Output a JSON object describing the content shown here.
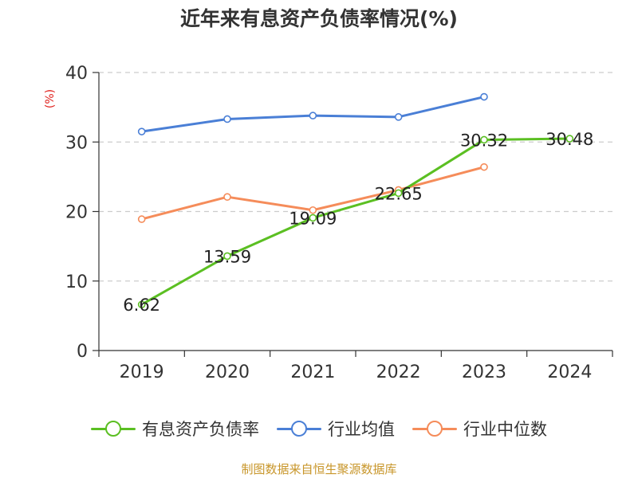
{
  "title": "近年来有息资产负债率情况(%)",
  "unit_label": "(%)",
  "source": "制图数据来自恒生聚源数据库",
  "colors": {
    "title": "#333333",
    "unit": "#e0201c",
    "source": "#c8962a",
    "axis": "#333333",
    "grid": "#cccccc"
  },
  "chart_data": {
    "type": "line",
    "title": "近年来有息资产负债率情况(%)",
    "xlabel": "",
    "ylabel": "(%)",
    "categories": [
      "2019",
      "2020",
      "2021",
      "2022",
      "2023",
      "2024"
    ],
    "ylim": [
      0,
      40
    ],
    "yticks": [
      0,
      10,
      20,
      30,
      40
    ],
    "grid": "horizontal dashed",
    "legend": "bottom",
    "series": [
      {
        "name": "有息资产负债率",
        "color": "#5bbf22",
        "values": [
          6.62,
          13.59,
          19.09,
          22.65,
          30.32,
          30.48
        ],
        "data_labels": [
          "6.62",
          "13.59",
          "19.09",
          "22.65",
          "30.32",
          "30.48"
        ]
      },
      {
        "name": "行业均值",
        "color": "#4a7fd6",
        "values": [
          31.5,
          33.3,
          33.8,
          33.6,
          36.5,
          null
        ]
      },
      {
        "name": "行业中位数",
        "color": "#f58c5a",
        "values": [
          18.9,
          22.1,
          20.2,
          23.1,
          26.4,
          null
        ]
      }
    ]
  }
}
